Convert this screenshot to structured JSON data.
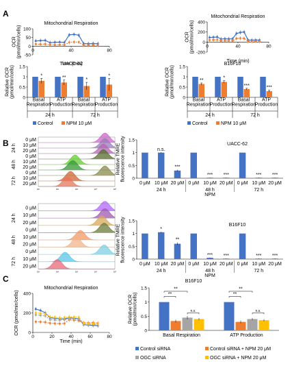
{
  "colors": {
    "control": "#4472C4",
    "npm": "#ED7D31",
    "gray": "#A5A5A5",
    "yellow": "#FFC000"
  },
  "panel_labels": [
    "A",
    "B",
    "C"
  ],
  "chart_data": [
    {
      "id": "A-ocr-uacc",
      "type": "line",
      "title": "Mitochondrial Respiration",
      "xlabel": "Time  (min)",
      "ylabel": "OCR\n(pmol/min/cells)",
      "xlim": [
        0,
        80
      ],
      "ylim": [
        -50,
        100
      ],
      "xticks": [
        0,
        40,
        80
      ],
      "yticks": [
        -50,
        0,
        50,
        100
      ],
      "series": [
        {
          "color_key": "control",
          "x": [
            3,
            8,
            13,
            18,
            23,
            28,
            33,
            38,
            43,
            48,
            53,
            58,
            63,
            68
          ],
          "y": [
            30,
            32,
            33,
            20,
            22,
            23,
            21,
            65,
            68,
            63,
            15,
            14,
            15,
            14
          ]
        },
        {
          "color_key": "npm",
          "x": [
            3,
            8,
            13,
            18,
            23,
            28,
            33,
            38,
            43,
            48,
            53,
            58,
            63,
            68
          ],
          "y": [
            12,
            11,
            12,
            8,
            7,
            8,
            7,
            22,
            24,
            23,
            5,
            5,
            6,
            5
          ]
        }
      ]
    },
    {
      "id": "A-ocr-b16",
      "type": "line",
      "title": "Mitochondrial Respiration",
      "xlabel": "Time  (min)",
      "ylabel": "OCR\n(pmol/min/cells)",
      "xlim": [
        0,
        80
      ],
      "ylim": [
        -200,
        400
      ],
      "xticks": [
        0,
        40,
        80
      ],
      "yticks": [
        -200,
        0,
        200,
        400
      ],
      "series": [
        {
          "color_key": "control",
          "x": [
            3,
            8,
            13,
            18,
            23,
            28,
            33,
            38,
            43,
            48,
            53,
            58,
            63,
            68
          ],
          "y": [
            90,
            95,
            100,
            60,
            65,
            62,
            64,
            170,
            190,
            200,
            40,
            38,
            40,
            38
          ]
        },
        {
          "color_key": "npm",
          "x": [
            3,
            8,
            13,
            18,
            23,
            28,
            33,
            38,
            43,
            48,
            53,
            58,
            63,
            68
          ],
          "y": [
            40,
            42,
            45,
            25,
            27,
            26,
            25,
            70,
            75,
            72,
            15,
            15,
            16,
            15
          ]
        }
      ]
    },
    {
      "id": "A-bar-uacc",
      "type": "bar",
      "title": "UACC-62",
      "ylabel": "Relative OCR\n(pmol/min/cells)",
      "ylim": [
        0,
        1.5
      ],
      "yticks": [
        0,
        0.5,
        1,
        1.5
      ],
      "categories": [
        "Basal\nRespiration",
        "ATP\nProduction",
        "Basal\nRespiration",
        "ATP\nProduction"
      ],
      "groups": [
        {
          "label": "24 h",
          "span": [
            0,
            1
          ]
        },
        {
          "label": "72 h",
          "span": [
            2,
            3
          ]
        }
      ],
      "series": [
        {
          "name": "Control",
          "color_key": "control",
          "values": [
            1,
            1,
            1,
            1
          ],
          "err": [
            0,
            0,
            0,
            0
          ]
        },
        {
          "name": "NPM 10 μM",
          "color_key": "npm",
          "values": [
            0.8,
            0.72,
            0.55,
            0.62
          ],
          "err": [
            0.12,
            0.12,
            0.18,
            0.3
          ]
        }
      ],
      "sig": [
        "*",
        "**",
        "*",
        "*"
      ],
      "legend": [
        "Control",
        "NPM 10 μM"
      ]
    },
    {
      "id": "A-bar-b16",
      "type": "bar",
      "title": "B16F10",
      "ylabel": "Relative OCR\n(pmol/min/cells)",
      "ylim": [
        0,
        1.5
      ],
      "yticks": [
        0,
        0.5,
        1,
        1.5
      ],
      "categories": [
        "Basal\nRespiration",
        "ATP\nProduction",
        "Basal\nRespiration",
        "ATP\nProduction"
      ],
      "groups": [
        {
          "label": "24 h",
          "span": [
            0,
            1
          ]
        },
        {
          "label": "72 h",
          "span": [
            2,
            3
          ]
        }
      ],
      "series": [
        {
          "name": "Control",
          "color_key": "control",
          "values": [
            1,
            1,
            1,
            1
          ],
          "err": [
            0,
            0,
            0,
            0
          ]
        },
        {
          "name": "NPM 10 μM",
          "color_key": "npm",
          "values": [
            0.65,
            0.75,
            0.4,
            0.3
          ],
          "err": [
            0.05,
            0.06,
            0.04,
            0.05
          ]
        }
      ],
      "sig": [
        "**",
        "*",
        "***",
        "***"
      ],
      "legend": [
        "Control",
        "NPM 10 μM"
      ]
    },
    {
      "id": "B-bar-uacc",
      "type": "bar",
      "title": "UACC-62",
      "ylabel": "Relative TMRE\nfluorescence intensity",
      "ylim": [
        0,
        1.5
      ],
      "yticks": [
        0,
        0.5,
        1,
        1.5
      ],
      "categories": [
        "0 μM",
        "10 μM",
        "20 μM",
        "0 μM",
        "10 μM",
        "20 μM",
        "0 μM",
        "10 μM",
        "20 μM"
      ],
      "groups": [
        {
          "label": "24 h",
          "span": [
            0,
            2
          ]
        },
        {
          "label": "48 h",
          "span": [
            3,
            5
          ]
        },
        {
          "label": "72 h",
          "span": [
            6,
            8
          ]
        }
      ],
      "center_label": "NPM",
      "series": [
        {
          "color_key": "control",
          "values": [
            1,
            1,
            0.3,
            1,
            0.02,
            0.02,
            1,
            0.02,
            0.02
          ],
          "err": [
            0,
            0.02,
            0.03,
            0,
            0.01,
            0.01,
            0,
            0.01,
            0.01
          ]
        }
      ],
      "sig": [
        "",
        "n.s.",
        "***",
        "",
        "***",
        "***",
        "",
        "***",
        "***"
      ]
    },
    {
      "id": "B-bar-b16",
      "type": "bar",
      "title": "B16F10",
      "ylabel": "Relative TMRE\nfluorescence intensity",
      "ylim": [
        0,
        1.5
      ],
      "yticks": [
        0,
        0.5,
        1,
        1.5
      ],
      "categories": [
        "0 μM",
        "10 μM",
        "20 μM",
        "0 μM",
        "10 μM",
        "20 μM",
        "0 μM",
        "10 μM",
        "20 μM"
      ],
      "groups": [
        {
          "label": "24 h",
          "span": [
            0,
            2
          ]
        },
        {
          "label": "48 h",
          "span": [
            3,
            5
          ]
        },
        {
          "label": "72 h",
          "span": [
            6,
            8
          ]
        }
      ],
      "center_label": "NPM",
      "series": [
        {
          "color_key": "control",
          "values": [
            1,
            1.05,
            0.6,
            1,
            0.05,
            0.02,
            1,
            0.02,
            0.02
          ],
          "err": [
            0,
            0.02,
            0.05,
            0,
            0.01,
            0.01,
            0,
            0.01,
            0.01
          ]
        }
      ],
      "sig": [
        "",
        "*",
        "**",
        "",
        "***",
        "***",
        "",
        "***",
        "***"
      ]
    },
    {
      "id": "C-ocr",
      "type": "line",
      "title": "Mitochondrial Respiration",
      "xlabel": "Time  (min)",
      "ylabel": "OCR (pmol/min/cells)",
      "xlim": [
        0,
        80
      ],
      "ylim": [
        0,
        400
      ],
      "xticks": [
        0,
        20,
        40,
        60,
        80
      ],
      "yticks": [
        0,
        200,
        400
      ],
      "series": [
        {
          "color_key": "control",
          "x": [
            3,
            8,
            13,
            18,
            23,
            28,
            33,
            38,
            43,
            48,
            53,
            58,
            63,
            68
          ],
          "y": [
            240,
            225,
            200,
            150,
            145,
            140,
            138,
            150,
            145,
            140,
            80,
            75,
            72,
            70
          ]
        },
        {
          "color_key": "npm",
          "x": [
            3,
            8,
            13,
            18,
            23,
            28,
            33,
            38,
            43,
            48,
            53,
            58,
            63,
            68
          ],
          "y": [
            110,
            108,
            105,
            95,
            92,
            90,
            92,
            130,
            125,
            120,
            100,
            98,
            100,
            95
          ]
        },
        {
          "color_key": "gray",
          "x": [
            3,
            8,
            13,
            18,
            23,
            28,
            33,
            38,
            43,
            48,
            53,
            58,
            63,
            68
          ],
          "y": [
            180,
            175,
            170,
            130,
            128,
            125,
            130,
            140,
            138,
            135,
            85,
            80,
            82,
            80
          ]
        },
        {
          "color_key": "yellow",
          "x": [
            3,
            8,
            13,
            18,
            23,
            28,
            33,
            38,
            43,
            48,
            53,
            58,
            63,
            68
          ],
          "y": [
            200,
            195,
            190,
            160,
            155,
            150,
            152,
            160,
            158,
            155,
            95,
            92,
            90,
            88
          ]
        }
      ]
    },
    {
      "id": "C-bar-b16",
      "type": "bar",
      "title": "B16F10",
      "ylabel": "Relative OCR\n(pmol/min/cells)",
      "ylim": [
        0,
        1.5
      ],
      "yticks": [
        0,
        0.5,
        1,
        1.5
      ],
      "groups": [
        {
          "label": "Basal Respiration"
        },
        {
          "label": "ATP Production"
        }
      ],
      "series": [
        {
          "name": "Control siRNA",
          "color_key": "control",
          "values": [
            1,
            1
          ],
          "err": [
            0,
            0
          ]
        },
        {
          "name": "Control siRNA + NPM 20 μM",
          "color_key": "npm",
          "values": [
            0.33,
            0.3
          ],
          "err": [
            0.05,
            0.05
          ]
        },
        {
          "name": "OGC siRNA",
          "color_key": "gray",
          "values": [
            0.45,
            0.4
          ],
          "err": [
            0.06,
            0.04
          ]
        },
        {
          "name": "OGC siRNA + NPM 20 μM",
          "color_key": "yellow",
          "values": [
            0.4,
            0.36
          ],
          "err": [
            0.04,
            0.04
          ]
        }
      ],
      "sig_brackets": [
        {
          "group": 0,
          "from": 0,
          "to": 2,
          "label": "**"
        },
        {
          "group": 0,
          "from": 0,
          "to": 1,
          "label": "**"
        },
        {
          "group": 0,
          "from": 2,
          "to": 3,
          "label": "n.s."
        },
        {
          "group": 1,
          "from": 0,
          "to": 2,
          "label": "**"
        },
        {
          "group": 1,
          "from": 0,
          "to": 1,
          "label": "**"
        },
        {
          "group": 1,
          "from": 2,
          "to": 3,
          "label": "n.s."
        }
      ]
    }
  ],
  "flow": {
    "uacc": {
      "rows": [
        {
          "label": "0 μM",
          "color": "#CC66CC",
          "peak": 0.87
        },
        {
          "label": "10 μM",
          "color": "#9B7BB5",
          "peak": 0.87
        },
        {
          "label": "20 μM",
          "color": "#B266B2",
          "peak": 0.85
        },
        {
          "label": "0 μM",
          "color": "#556B2F",
          "peak": 0.85
        },
        {
          "label": "10 μM",
          "color": "#66CC33",
          "peak": 0.48
        },
        {
          "label": "20 μM",
          "color": "#339933",
          "peak": 0.45
        },
        {
          "label": "0 μM",
          "color": "#8A8A4A",
          "peak": 0.87
        },
        {
          "label": "10 μM",
          "color": "#CC6633",
          "peak": 0.42
        },
        {
          "label": "20 μM",
          "color": "#E8765A",
          "peak": 0.38
        }
      ],
      "times": [
        "24 h",
        "48 h",
        "72 h"
      ]
    },
    "b16": {
      "rows": [
        {
          "label": "0 μM",
          "color": "#B266FF",
          "peak": 0.87
        },
        {
          "label": "10 μM",
          "color": "#A05AB0",
          "peak": 0.87
        },
        {
          "label": "20 μM",
          "color": "#D9A85A",
          "peak": 0.83
        },
        {
          "label": "0 μM",
          "color": "#6B7B3A",
          "peak": 0.86
        },
        {
          "label": "10 μM",
          "color": "#F29966",
          "peak": 0.55
        },
        {
          "label": "20 μM",
          "color": "#F2B48A",
          "peak": 0.5
        },
        {
          "label": "0 μM",
          "color": "#7FCFE0",
          "peak": 0.86
        },
        {
          "label": "10 μM",
          "color": "#59C7E8",
          "peak": 0.35
        },
        {
          "label": "20 μM",
          "color": "#E86A7A",
          "peak": 0.25
        }
      ],
      "times": [
        "24 h",
        "48 h",
        "72 h"
      ]
    }
  }
}
